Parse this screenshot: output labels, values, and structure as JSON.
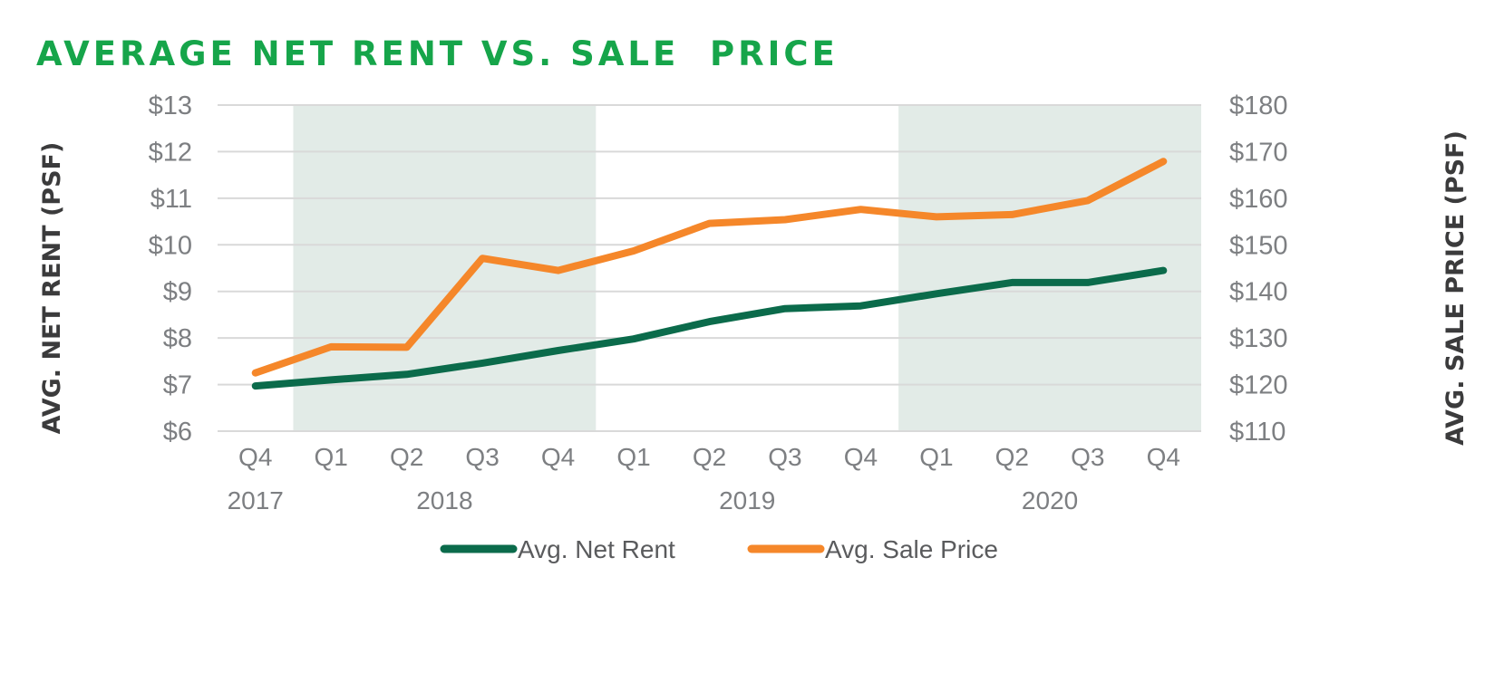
{
  "chart_data": {
    "type": "line",
    "title": "AVERAGE NET RENT VS. SALE  PRICE",
    "ylabel_left": "AVG. NET RENT (PSF)",
    "ylabel_right": "AVG. SALE PRICE (PSF)",
    "categories": [
      "Q4",
      "Q1",
      "Q2",
      "Q3",
      "Q4",
      "Q1",
      "Q2",
      "Q3",
      "Q4",
      "Q1",
      "Q2",
      "Q3",
      "Q4"
    ],
    "year_labels": [
      {
        "label": "2017",
        "start": 0,
        "end": 0
      },
      {
        "label": "2018",
        "start": 1,
        "end": 4
      },
      {
        "label": "2019",
        "start": 5,
        "end": 8
      },
      {
        "label": "2020",
        "start": 9,
        "end": 12
      }
    ],
    "shaded_years": [
      1,
      3
    ],
    "ylim_left": [
      6,
      13
    ],
    "yticks_left": [
      "$13",
      "$12",
      "$11",
      "$10",
      "$9",
      "$8",
      "$7",
      "$6"
    ],
    "ylim_right": [
      110,
      180
    ],
    "yticks_right": [
      "$180",
      "$170",
      "$160",
      "$150",
      "$140",
      "$130",
      "$120",
      "$110"
    ],
    "grid": true,
    "legend_position": "bottom",
    "series": [
      {
        "name": "Avg. Net Rent",
        "axis": "left",
        "color": "#0b6b4b",
        "values": [
          6.97,
          7.1,
          7.22,
          7.46,
          7.73,
          7.98,
          8.35,
          8.63,
          8.69,
          8.95,
          9.19,
          9.19,
          9.45
        ]
      },
      {
        "name": "Avg. Sale Price",
        "axis": "right",
        "color": "#f5872a",
        "values": [
          122.5,
          128.1,
          128.0,
          147.1,
          144.5,
          148.7,
          154.6,
          155.4,
          157.6,
          156.0,
          156.5,
          159.5,
          167.9
        ]
      }
    ],
    "colors": {
      "shade": "#e2ebe7",
      "grid": "#d9d9d9",
      "title": "#16a54a",
      "tick": "#7d7f82"
    }
  }
}
